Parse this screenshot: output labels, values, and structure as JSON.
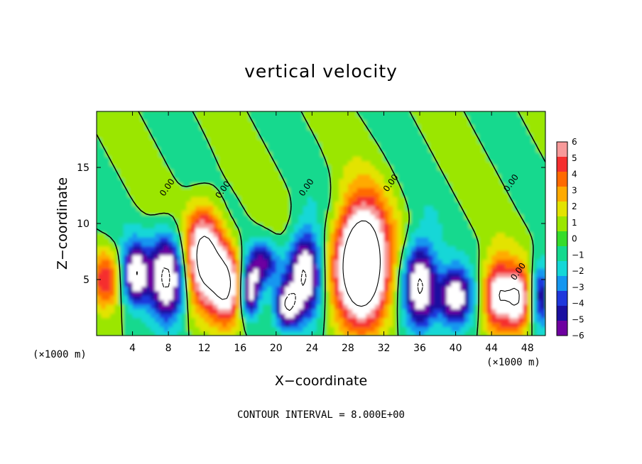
{
  "chart_data": {
    "type": "heatmap",
    "title": "vertical velocity",
    "xlabel": "X−coordinate",
    "ylabel": "Z−coordinate",
    "x_unit_label": "(×1000 m)",
    "x_ticks": [
      4,
      8,
      12,
      16,
      20,
      24,
      28,
      32,
      36,
      40,
      44,
      48
    ],
    "y_ticks": [
      5,
      10,
      15
    ],
    "xlim": [
      0,
      50
    ],
    "ylim": [
      0,
      20
    ],
    "colorbar": {
      "labels": [
        "6",
        "5",
        "4",
        "3",
        "2",
        "1",
        "0",
        "−1",
        "−2",
        "−3",
        "−4",
        "−5",
        "−6"
      ],
      "colors": [
        "#f79a9a",
        "#f52f2f",
        "#ff6a00",
        "#ffaa00",
        "#e3e300",
        "#9be600",
        "#36dc2a",
        "#14d98e",
        "#14d7d7",
        "#1496f0",
        "#1e37dc",
        "#1a0fa0",
        "#6e00a0"
      ],
      "range": [
        -6,
        6
      ]
    },
    "contour_labels": [
      {
        "text": "0.00",
        "x": 7.9,
        "z": 13.2
      },
      {
        "text": "0.00",
        "x": 14.1,
        "z": 13.0
      },
      {
        "text": "0.00",
        "x": 23.4,
        "z": 13.2
      },
      {
        "text": "0.00",
        "x": 32.8,
        "z": 13.6
      },
      {
        "text": "0.00",
        "x": 46.2,
        "z": 13.6
      },
      {
        "text": "0.00",
        "x": 47.0,
        "z": 5.7
      }
    ],
    "features": [
      {
        "kind": "updraft",
        "x": 1.0,
        "z": 5.0,
        "amp": 4.8,
        "sx": 1.2,
        "sz": 1.8
      },
      {
        "kind": "downdraft",
        "x": 4.3,
        "z": 5.5,
        "amp": -7.5,
        "sx": 1.0,
        "sz": 1.9
      },
      {
        "kind": "downdraft",
        "x": 7.8,
        "z": 5.2,
        "amp": -8.5,
        "sx": 1.4,
        "sz": 2.7
      },
      {
        "kind": "updraft",
        "x": 12.0,
        "z": 7.0,
        "amp": 9.5,
        "sx": 1.4,
        "sz": 3.0
      },
      {
        "kind": "updraft",
        "x": 14.5,
        "z": 4.5,
        "amp": 8.0,
        "sx": 1.2,
        "sz": 2.4
      },
      {
        "kind": "downdraft",
        "x": 17.0,
        "z": 4.0,
        "amp": -7.0,
        "sx": 0.8,
        "sz": 1.6
      },
      {
        "kind": "downdraft",
        "x": 18.5,
        "z": 6.5,
        "amp": -5.0,
        "sx": 1.2,
        "sz": 1.4
      },
      {
        "kind": "downdraft",
        "x": 21.2,
        "z": 2.7,
        "amp": -7.0,
        "sx": 0.9,
        "sz": 1.4
      },
      {
        "kind": "downdraft",
        "x": 23.2,
        "z": 5.5,
        "amp": -8.5,
        "sx": 1.3,
        "sz": 2.7
      },
      {
        "kind": "updraft",
        "x": 29.5,
        "z": 6.4,
        "amp": 14.0,
        "sx": 2.0,
        "sz": 3.6
      },
      {
        "kind": "downdraft",
        "x": 36.0,
        "z": 4.5,
        "amp": -8.5,
        "sx": 1.3,
        "sz": 2.6
      },
      {
        "kind": "downdraft",
        "x": 40.0,
        "z": 3.5,
        "amp": -7.5,
        "sx": 1.3,
        "sz": 1.8
      },
      {
        "kind": "updraft",
        "x": 44.7,
        "z": 3.6,
        "amp": 7.5,
        "sx": 1.1,
        "sz": 2.2
      },
      {
        "kind": "updraft",
        "x": 47.0,
        "z": 3.4,
        "amp": 7.5,
        "sx": 1.0,
        "sz": 2.0
      },
      {
        "kind": "downdraft",
        "x": 49.5,
        "z": 3.5,
        "amp": -5.0,
        "sx": 0.9,
        "sz": 2.0
      }
    ]
  },
  "footnote": "CONTOUR INTERVAL = 8.000E+00"
}
